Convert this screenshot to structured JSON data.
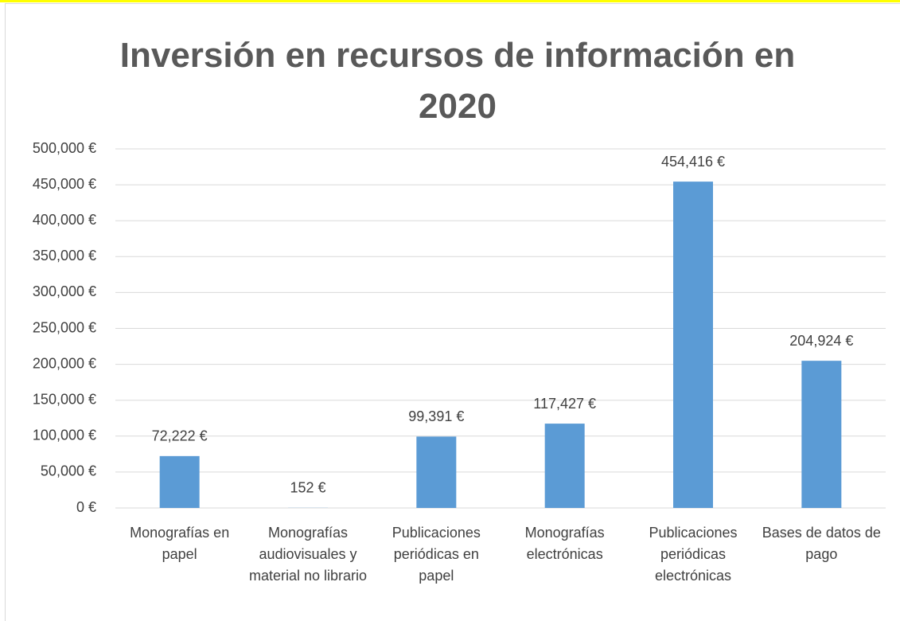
{
  "chart_data": {
    "type": "bar",
    "title": "Inversión en recursos de información en 2020",
    "categories": [
      "Monografías en papel",
      "Monografías audiovisuales y material no librario",
      "Publicaciones periódicas en papel",
      "Monografías electrónicas",
      "Publicaciones periódicas electrónicas",
      "Bases de datos de pago"
    ],
    "values": [
      72222,
      152,
      99391,
      117427,
      454416,
      204924
    ],
    "value_labels": [
      "72,222 €",
      "152 €",
      "99,391 €",
      "117,427 €",
      "454,416 €",
      "204,924 €"
    ],
    "color": "#5b9bd5",
    "ylim": [
      0,
      500000
    ],
    "yticks": [
      {
        "value": 0,
        "label": "0 €"
      },
      {
        "value": 50000,
        "label": "50,000 €"
      },
      {
        "value": 100000,
        "label": "100,000 €"
      },
      {
        "value": 150000,
        "label": "150,000 €"
      },
      {
        "value": 200000,
        "label": "200,000 €"
      },
      {
        "value": 250000,
        "label": "250,000 €"
      },
      {
        "value": 300000,
        "label": "300,000 €"
      },
      {
        "value": 350000,
        "label": "350,000 €"
      },
      {
        "value": 400000,
        "label": "400,000 €"
      },
      {
        "value": 450000,
        "label": "450,000 €"
      },
      {
        "value": 500000,
        "label": "500,000 €"
      }
    ],
    "grid": true
  }
}
